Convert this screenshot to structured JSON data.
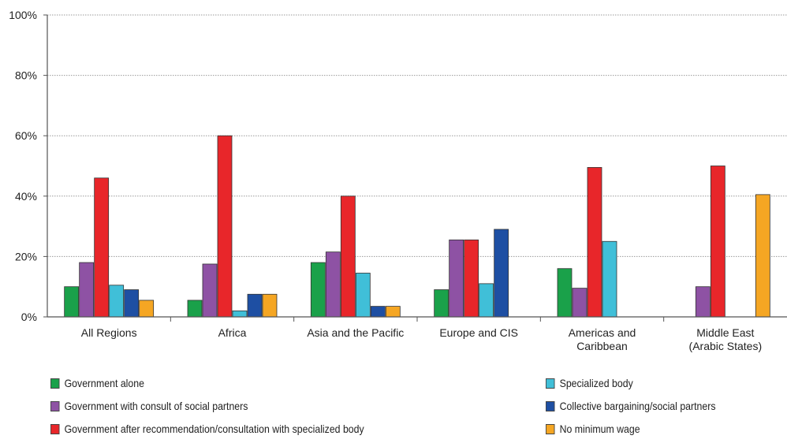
{
  "chart_data": {
    "type": "bar",
    "title": "",
    "xlabel": "",
    "ylabel": "",
    "ylim": [
      0,
      100
    ],
    "y_ticks": [
      "0%",
      "20%",
      "40%",
      "60%",
      "80%",
      "100%"
    ],
    "grid": true,
    "legend_position": "bottom",
    "categories": [
      "All Regions",
      "Africa",
      "Asia and the Pacific",
      "Europe and CIS",
      "Americas and\nCaribbean",
      "Middle East\n(Arabic States)"
    ],
    "series": [
      {
        "name": "Government alone",
        "color": "#1aa14a",
        "values": [
          10,
          5.5,
          18,
          9,
          16,
          0
        ]
      },
      {
        "name": "Government with consult of social partners",
        "color": "#8e52a4",
        "values": [
          18,
          17.5,
          21.5,
          25.5,
          9.5,
          10
        ]
      },
      {
        "name": "Government after recommendation/consultation with specialized body",
        "color": "#e8262a",
        "values": [
          46,
          60,
          40,
          25.5,
          49.5,
          50
        ]
      },
      {
        "name": "Specialized body",
        "color": "#40bfd8",
        "values": [
          10.5,
          2,
          14.5,
          11,
          25,
          0
        ]
      },
      {
        "name": "Collective bargaining/social partners",
        "color": "#1e4fa3",
        "values": [
          9,
          7.5,
          3.5,
          29,
          0,
          0
        ]
      },
      {
        "name": "No minimum wage",
        "color": "#f5a623",
        "values": [
          5.5,
          7.5,
          3.5,
          0,
          0,
          40.5
        ]
      }
    ]
  }
}
